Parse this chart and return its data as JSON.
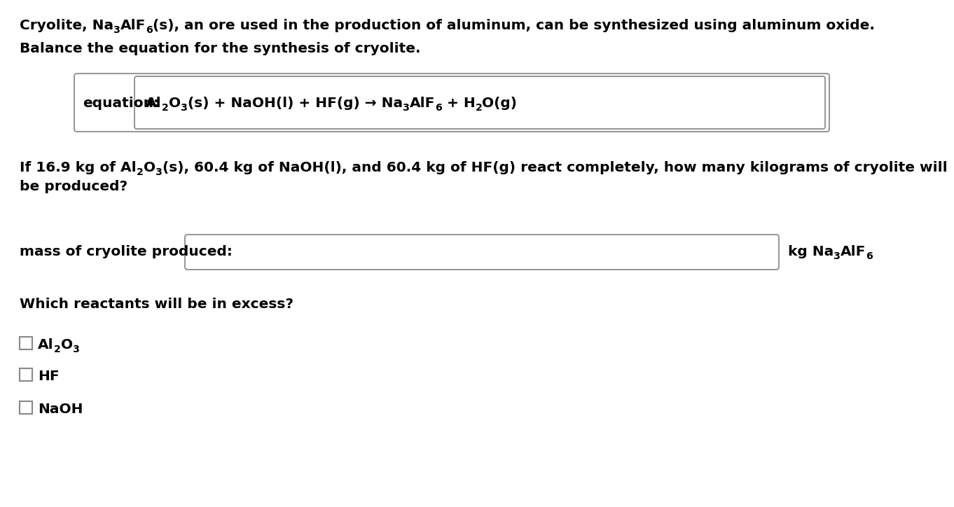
{
  "background_color": "#ffffff",
  "text_color": "#000000",
  "box_edge_color": "#aaaaaa",
  "box_face_color": "#ffffff",
  "font_family": "DejaVu Sans",
  "font_size": 14.5,
  "font_weight": "bold",
  "line1_parts": [
    {
      "text": "Cryolite, Na",
      "sub": false
    },
    {
      "text": "3",
      "sub": true
    },
    {
      "text": "AlF",
      "sub": false
    },
    {
      "text": "6",
      "sub": true
    },
    {
      "text": "(s), an ore used in the production of aluminum, can be synthesized using aluminum oxide.",
      "sub": false
    }
  ],
  "line2": "Balance the equation for the synthesis of cryolite.",
  "eq_label": "equation:",
  "eq_parts": [
    {
      "text": "Al",
      "sub": false
    },
    {
      "text": "2",
      "sub": true
    },
    {
      "text": "O",
      "sub": false
    },
    {
      "text": "3",
      "sub": true
    },
    {
      "text": "(s) + NaOH(l) + HF(g) → Na",
      "sub": false
    },
    {
      "text": "3",
      "sub": true
    },
    {
      "text": "AlF",
      "sub": false
    },
    {
      "text": "6",
      "sub": true
    },
    {
      "text": " + H",
      "sub": false
    },
    {
      "text": "2",
      "sub": true
    },
    {
      "text": "O(g)",
      "sub": false
    }
  ],
  "q_parts_line1": [
    {
      "text": "If 16.9 kg of Al",
      "sub": false
    },
    {
      "text": "2",
      "sub": true
    },
    {
      "text": "O",
      "sub": false
    },
    {
      "text": "3",
      "sub": true
    },
    {
      "text": "(s), 60.4 kg of NaOH(l), and 60.4 kg of HF(g) react completely, how many kilograms of cryolite will",
      "sub": false
    }
  ],
  "q_line2": "be produced?",
  "mass_label": "mass of cryolite produced:",
  "mass_units_parts": [
    {
      "text": "kg Na",
      "sub": false
    },
    {
      "text": "3",
      "sub": true
    },
    {
      "text": "AlF",
      "sub": false
    },
    {
      "text": "6",
      "sub": true
    }
  ],
  "excess_q": "Which reactants will be in excess?",
  "cb1_parts": [
    {
      "text": "Al",
      "sub": false
    },
    {
      "text": "2",
      "sub": true
    },
    {
      "text": "O",
      "sub": false
    },
    {
      "text": "3",
      "sub": true
    }
  ],
  "cb2": "HF",
  "cb3": "NaOH"
}
